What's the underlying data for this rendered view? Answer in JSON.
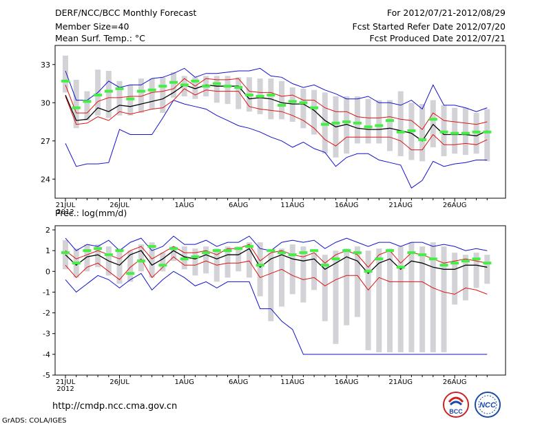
{
  "header": {
    "title": "DERF/NCC/BCC Monthly Forecast",
    "member_size": "Member Size=40",
    "variable": "Mean Surf. Temp.: °C",
    "period": "For 2012/07/21-2012/08/29",
    "refer_date": "Fcst Started Refer Date 2012/07/20",
    "produced_date": "Fcst Produced Date 2012/07/21"
  },
  "footer": {
    "url": "http://cmdp.ncc.cma.gov.cn",
    "grads": "GrADS: COLA/IGES",
    "logo_bcc": "BCC",
    "logo_ncc": "NCC"
  },
  "colors": {
    "bar": "#d3d3d7",
    "median": "#44ee44",
    "mean": "#000000",
    "spread": "#dd1111",
    "envelope": "#1111cc"
  },
  "chart_data": [
    {
      "type": "line",
      "title": "Mean Surf. Temp.: °C",
      "x_tick_labels": [
        "21JUL",
        "26JUL",
        "1AUG",
        "6AUG",
        "11AUG",
        "16AUG",
        "21AUG",
        "26AUG"
      ],
      "x_tick_day_index": [
        0,
        5,
        11,
        16,
        21,
        26,
        31,
        36
      ],
      "x_sub_label": "2012",
      "y_ticks": [
        24,
        27,
        30,
        33
      ],
      "ylim": [
        22.5,
        34.5
      ],
      "series": [
        {
          "name": "max",
          "values": [
            32.5,
            30.2,
            30.2,
            30.8,
            31.7,
            31.2,
            31.4,
            31.4,
            31.9,
            32.0,
            32.3,
            32.7,
            32.0,
            32.3,
            32.3,
            32.4,
            32.5,
            32.5,
            32.7,
            32.1,
            32.0,
            31.5,
            31.2,
            31.4,
            31.0,
            30.7,
            30.3,
            30.3,
            30.5,
            30.0,
            30.0,
            29.8,
            30.2,
            29.5,
            31.4,
            29.8,
            29.8,
            29.6,
            29.3,
            29.6
          ]
        },
        {
          "name": "mean_plus_sd",
          "values": [
            31.4,
            29.2,
            29.2,
            30.1,
            30.4,
            30.4,
            30.5,
            30.5,
            30.8,
            30.9,
            31.1,
            31.9,
            31.3,
            31.9,
            31.8,
            31.8,
            31.9,
            30.9,
            30.8,
            30.8,
            30.5,
            30.6,
            30.2,
            30.2,
            29.6,
            29.3,
            29.3,
            28.9,
            28.8,
            28.8,
            28.9,
            28.7,
            28.6,
            27.9,
            29.2,
            28.6,
            28.5,
            28.4,
            28.3,
            28.5
          ]
        },
        {
          "name": "mean",
          "values": [
            30.6,
            28.6,
            28.7,
            29.6,
            29.3,
            29.8,
            29.7,
            29.9,
            30.1,
            30.3,
            30.8,
            31.4,
            31.1,
            31.4,
            31.3,
            31.3,
            31.3,
            30.3,
            30.4,
            30.3,
            30.0,
            29.9,
            29.9,
            29.4,
            28.6,
            28.1,
            28.3,
            28.0,
            27.9,
            27.9,
            28.0,
            27.8,
            27.6,
            27.0,
            28.3,
            27.5,
            27.5,
            27.5,
            27.4,
            27.8
          ]
        },
        {
          "name": "mean_minus_sd",
          "values": [
            30.5,
            28.3,
            28.4,
            28.9,
            28.6,
            29.3,
            29.1,
            29.3,
            29.5,
            29.6,
            30.2,
            31.1,
            30.6,
            31.0,
            30.9,
            30.9,
            30.9,
            29.7,
            29.5,
            29.4,
            29.3,
            29.0,
            28.6,
            28.0,
            27.1,
            26.6,
            27.3,
            27.3,
            27.3,
            27.3,
            27.3,
            27.0,
            26.3,
            26.3,
            27.5,
            26.7,
            26.7,
            26.8,
            26.7,
            27.1
          ]
        },
        {
          "name": "min",
          "values": [
            26.8,
            25.0,
            25.2,
            25.2,
            25.3,
            27.9,
            27.5,
            27.5,
            27.5,
            28.8,
            30.2,
            29.9,
            29.7,
            29.5,
            29.0,
            28.6,
            28.2,
            28.0,
            27.7,
            27.3,
            27.0,
            26.5,
            26.9,
            26.4,
            26.1,
            25.0,
            25.7,
            26.0,
            26.0,
            25.5,
            25.3,
            25.1,
            23.3,
            23.9,
            25.4,
            25.0,
            25.2,
            25.3,
            25.5,
            25.5
          ]
        },
        {
          "name": "median",
          "values": [
            31.7,
            29.6,
            30.1,
            30.6,
            30.9,
            31.1,
            30.3,
            30.9,
            31.0,
            31.3,
            31.6,
            31.4,
            31.7,
            31.3,
            31.5,
            31.3,
            31.2,
            30.6,
            30.5,
            30.6,
            29.8,
            30.1,
            30.0,
            29.6,
            28.3,
            28.4,
            28.5,
            28.4,
            28.1,
            28.2,
            28.6,
            27.7,
            27.8,
            27.1,
            28.7,
            27.7,
            27.6,
            27.6,
            27.7,
            27.7
          ]
        },
        {
          "name": "bar_top",
          "values": [
            33.7,
            31.8,
            30.9,
            32.6,
            32.5,
            31.7,
            31.4,
            31.9,
            31.9,
            32.0,
            32.4,
            32.1,
            32.0,
            32.1,
            32.1,
            32.1,
            32.0,
            32.0,
            31.9,
            31.9,
            31.7,
            31.2,
            31.1,
            31.0,
            30.8,
            30.5,
            30.5,
            30.5,
            30.3,
            30.2,
            30.2,
            30.9,
            30.0,
            29.9,
            30.2,
            29.8,
            29.6,
            29.6,
            29.2,
            29.5
          ]
        },
        {
          "name": "bar_bottom",
          "values": [
            30.8,
            28.0,
            28.6,
            29.0,
            28.8,
            29.0,
            29.0,
            29.2,
            29.5,
            29.2,
            30.4,
            30.5,
            30.3,
            30.5,
            30.0,
            29.9,
            29.5,
            29.3,
            29.1,
            28.7,
            28.7,
            28.5,
            28.0,
            27.5,
            26.0,
            25.7,
            26.0,
            26.8,
            26.8,
            26.8,
            26.2,
            25.8,
            25.5,
            25.4,
            26.5,
            25.8,
            26.0,
            25.9,
            26.0,
            25.4
          ]
        }
      ]
    },
    {
      "type": "line",
      "title": "Prec.: log(mm/d)",
      "x_tick_labels": [
        "21JUL",
        "26JUL",
        "1AUG",
        "6AUG",
        "11AUG",
        "16AUG",
        "21AUG",
        "26AUG"
      ],
      "x_tick_day_index": [
        0,
        5,
        11,
        16,
        21,
        26,
        31,
        36
      ],
      "x_sub_label": "2012",
      "y_ticks": [
        -5,
        -4,
        -3,
        -2,
        -1,
        0,
        1,
        2
      ],
      "ylim": [
        -5,
        2.2
      ],
      "series": [
        {
          "name": "max",
          "values": [
            1.6,
            1.0,
            1.3,
            1.2,
            1.5,
            1.0,
            1.4,
            1.6,
            1.0,
            1.2,
            1.7,
            1.3,
            1.3,
            1.5,
            1.2,
            1.4,
            1.4,
            1.7,
            1.1,
            1.0,
            1.4,
            1.5,
            1.4,
            1.5,
            1.1,
            1.4,
            1.6,
            1.4,
            1.2,
            1.4,
            1.4,
            1.2,
            1.4,
            1.4,
            1.2,
            1.3,
            1.2,
            1.0,
            1.1,
            1.0
          ]
        },
        {
          "name": "mean_plus_sd",
          "values": [
            1.0,
            0.6,
            0.8,
            1.0,
            0.8,
            0.6,
            1.0,
            1.2,
            0.6,
            0.9,
            1.2,
            0.9,
            0.9,
            1.0,
            0.8,
            1.1,
            1.1,
            1.3,
            0.5,
            0.9,
            1.0,
            0.8,
            0.7,
            0.9,
            0.4,
            0.8,
            1.0,
            0.8,
            0.2,
            0.8,
            1.0,
            0.4,
            0.9,
            0.8,
            0.6,
            0.4,
            0.5,
            0.6,
            0.5,
            0.4
          ]
        },
        {
          "name": "mean",
          "values": [
            0.8,
            0.3,
            0.7,
            0.8,
            0.5,
            0.3,
            0.8,
            1.0,
            0.3,
            0.6,
            1.0,
            0.7,
            0.6,
            0.8,
            0.6,
            0.8,
            0.8,
            1.1,
            0.2,
            0.6,
            0.8,
            0.6,
            0.5,
            0.6,
            0.1,
            0.4,
            0.7,
            0.5,
            -0.1,
            0.4,
            0.6,
            0.1,
            0.5,
            0.4,
            0.2,
            0.1,
            0.1,
            0.3,
            0.3,
            0.2
          ]
        },
        {
          "name": "mean_minus_sd",
          "values": [
            0.3,
            -0.3,
            0.2,
            0.4,
            0.0,
            -0.4,
            0.2,
            0.6,
            -0.3,
            0.2,
            0.7,
            0.3,
            0.3,
            0.5,
            0.3,
            0.4,
            0.4,
            0.5,
            -0.3,
            -0.1,
            0.1,
            -0.2,
            -0.4,
            -0.3,
            -0.7,
            -0.4,
            -0.2,
            -0.2,
            -0.9,
            -0.3,
            -0.5,
            -0.5,
            -0.5,
            -0.5,
            -0.8,
            -1.0,
            -1.1,
            -0.8,
            -0.9,
            -1.1
          ]
        },
        {
          "name": "min",
          "values": [
            -0.4,
            -1.0,
            -0.6,
            -0.2,
            -0.4,
            -0.8,
            -0.4,
            -0.1,
            -0.9,
            -0.4,
            0.0,
            -0.3,
            -0.7,
            -0.5,
            -0.8,
            -0.5,
            -0.5,
            -0.5,
            -1.8,
            -1.8,
            -2.4,
            -2.8,
            -4.0,
            -4.0,
            -4.0,
            -4.0,
            -4.0,
            -4.0,
            -4.0,
            -4.0,
            -4.0,
            -4.0,
            -4.0,
            -4.0,
            -4.0,
            -4.0,
            -4.0,
            -4.0,
            -4.0,
            -4.0
          ]
        },
        {
          "name": "median",
          "values": [
            0.9,
            0.4,
            1.0,
            1.1,
            0.8,
            1.0,
            -0.1,
            0.5,
            1.2,
            0.3,
            1.1,
            0.6,
            0.7,
            0.9,
            1.0,
            1.0,
            1.1,
            1.2,
            0.3,
            1.0,
            0.9,
            0.8,
            0.9,
            1.0,
            0.3,
            0.6,
            1.0,
            0.9,
            0.0,
            0.6,
            1.0,
            0.2,
            0.9,
            0.8,
            0.6,
            0.3,
            0.4,
            0.5,
            0.6,
            0.4
          ]
        },
        {
          "name": "bar_top",
          "values": [
            1.5,
            1.1,
            1.3,
            1.3,
            1.2,
            1.1,
            1.0,
            1.3,
            1.4,
            0.9,
            1.2,
            1.2,
            1.1,
            1.2,
            1.1,
            1.2,
            1.2,
            1.4,
            1.4,
            0.9,
            1.1,
            1.3,
            1.2,
            0.9,
            0.8,
            1.0,
            1.1,
            1.2,
            1.0,
            1.1,
            1.1,
            1.2,
            1.4,
            1.2,
            1.4,
            1.2,
            0.9,
            0.8,
            0.9,
            0.8
          ]
        },
        {
          "name": "bar_bottom",
          "values": [
            0.1,
            -0.3,
            0.0,
            0.2,
            -0.2,
            -0.6,
            -0.5,
            0.0,
            -0.3,
            0.0,
            0.5,
            0.1,
            -0.2,
            -0.1,
            -0.5,
            -0.3,
            0.0,
            -0.3,
            -1.2,
            -2.4,
            -1.7,
            -1.1,
            -1.5,
            -0.9,
            -2.4,
            -3.5,
            -2.6,
            -2.2,
            -3.8,
            -3.9,
            -3.9,
            -3.9,
            -3.9,
            -3.9,
            -3.9,
            -3.9,
            -1.6,
            -1.4,
            -0.8,
            -0.6
          ]
        }
      ]
    }
  ]
}
